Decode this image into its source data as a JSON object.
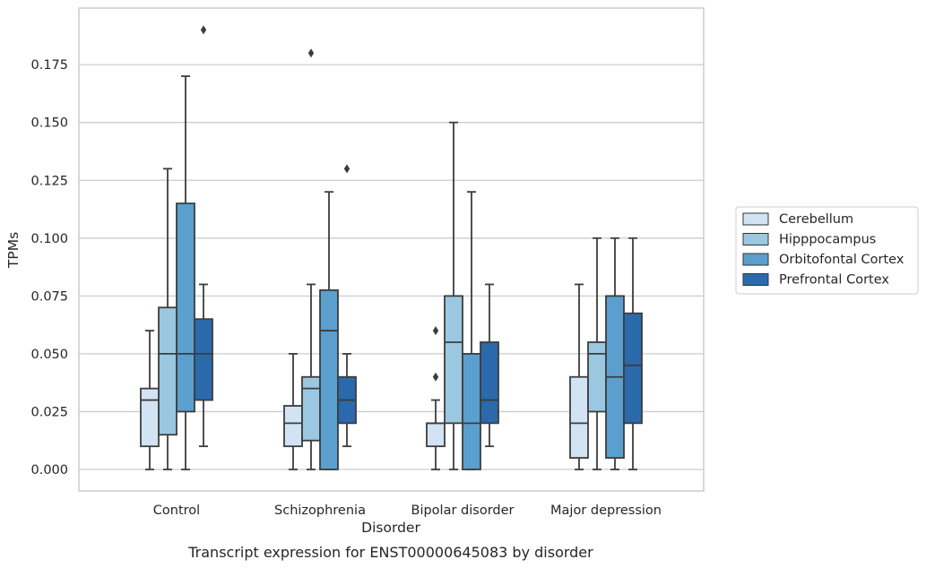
{
  "chart_data": {
    "type": "box",
    "caption": "Transcript expression for ENST00000645083 by disorder",
    "xlabel": "Disorder",
    "ylabel": "TPMs",
    "ylim": [
      -0.009,
      0.2
    ],
    "yticks": [
      0.0,
      0.025,
      0.05,
      0.075,
      0.1,
      0.125,
      0.15,
      0.175
    ],
    "ytick_labels": [
      "0.000",
      "0.025",
      "0.050",
      "0.075",
      "0.100",
      "0.125",
      "0.150",
      "0.175"
    ],
    "grid": true,
    "legend_position": "right",
    "categories": [
      "Control",
      "Schizophrenia",
      "Bipolar disorder",
      "Major depression"
    ],
    "series": [
      {
        "name": "Cerebellum",
        "color": "#d2e3f3",
        "boxes": [
          {
            "q1": 0.01,
            "median": 0.03,
            "q3": 0.035,
            "whisker_low": 0.0,
            "whisker_high": 0.06,
            "outliers": []
          },
          {
            "q1": 0.01,
            "median": 0.02,
            "q3": 0.0275,
            "whisker_low": 0.0,
            "whisker_high": 0.05,
            "outliers": []
          },
          {
            "q1": 0.01,
            "median": 0.02,
            "q3": 0.02,
            "whisker_low": 0.0,
            "whisker_high": 0.03,
            "outliers": [
              0.04,
              0.06
            ]
          },
          {
            "q1": 0.005,
            "median": 0.02,
            "q3": 0.04,
            "whisker_low": 0.0,
            "whisker_high": 0.08,
            "outliers": []
          }
        ]
      },
      {
        "name": "Hipppocampus",
        "color": "#9ac8e0",
        "boxes": [
          {
            "q1": 0.015,
            "median": 0.05,
            "q3": 0.07,
            "whisker_low": 0.0,
            "whisker_high": 0.13,
            "outliers": []
          },
          {
            "q1": 0.0125,
            "median": 0.035,
            "q3": 0.04,
            "whisker_low": 0.0,
            "whisker_high": 0.08,
            "outliers": [
              0.18
            ]
          },
          {
            "q1": 0.02,
            "median": 0.055,
            "q3": 0.075,
            "whisker_low": 0.0,
            "whisker_high": 0.15,
            "outliers": []
          },
          {
            "q1": 0.025,
            "median": 0.05,
            "q3": 0.055,
            "whisker_low": 0.0,
            "whisker_high": 0.1,
            "outliers": []
          }
        ]
      },
      {
        "name": "Orbitofontal Cortex",
        "color": "#5a9fcd",
        "boxes": [
          {
            "q1": 0.025,
            "median": 0.05,
            "q3": 0.115,
            "whisker_low": 0.0,
            "whisker_high": 0.17,
            "outliers": []
          },
          {
            "q1": 0.0,
            "median": 0.06,
            "q3": 0.0775,
            "whisker_low": 0.0,
            "whisker_high": 0.12,
            "outliers": []
          },
          {
            "q1": 0.0,
            "median": 0.02,
            "q3": 0.05,
            "whisker_low": 0.0,
            "whisker_high": 0.12,
            "outliers": []
          },
          {
            "q1": 0.005,
            "median": 0.04,
            "q3": 0.075,
            "whisker_low": 0.0,
            "whisker_high": 0.1,
            "outliers": []
          }
        ]
      },
      {
        "name": "Prefrontal Cortex",
        "color": "#2a6aac",
        "boxes": [
          {
            "q1": 0.03,
            "median": 0.05,
            "q3": 0.065,
            "whisker_low": 0.01,
            "whisker_high": 0.08,
            "outliers": [
              0.19
            ]
          },
          {
            "q1": 0.02,
            "median": 0.03,
            "q3": 0.04,
            "whisker_low": 0.01,
            "whisker_high": 0.05,
            "outliers": [
              0.13
            ]
          },
          {
            "q1": 0.02,
            "median": 0.03,
            "q3": 0.055,
            "whisker_low": 0.01,
            "whisker_high": 0.08,
            "outliers": []
          },
          {
            "q1": 0.02,
            "median": 0.045,
            "q3": 0.0675,
            "whisker_low": 0.0,
            "whisker_high": 0.1,
            "outliers": []
          }
        ]
      }
    ]
  }
}
